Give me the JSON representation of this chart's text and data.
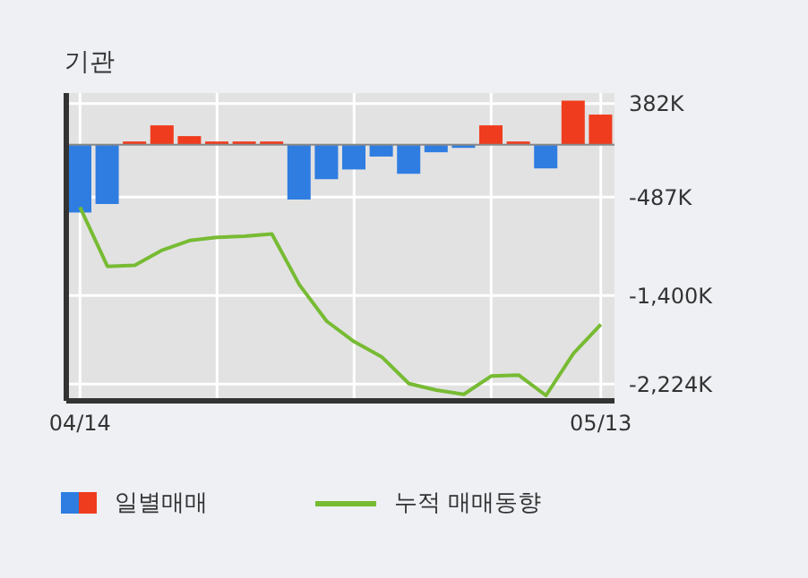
{
  "chart_data": {
    "type": "bar",
    "title": "기관",
    "categories": [
      "04/14",
      null,
      null,
      null,
      null,
      null,
      null,
      null,
      null,
      null,
      null,
      null,
      null,
      null,
      null,
      null,
      null,
      null,
      null,
      "05/13"
    ],
    "series": [
      {
        "name": "일별매매",
        "colors": [
          "#2f7de1",
          "#2f7de1",
          "#f03c1e",
          "#f03c1e",
          "#f03c1e",
          "#f03c1e",
          "#f03c1e",
          "#f03c1e",
          "#2f7de1",
          "#2f7de1",
          "#2f7de1",
          "#2f7de1",
          "#2f7de1",
          "#2f7de1",
          "#2f7de1",
          "#f03c1e",
          "#f03c1e",
          "#2f7de1",
          "#f03c1e",
          "#f03c1e"
        ],
        "values": [
          -630,
          -550,
          30,
          180,
          80,
          30,
          30,
          30,
          -510,
          -320,
          -230,
          -110,
          -270,
          -70,
          -30,
          180,
          30,
          -220,
          410,
          280
        ]
      },
      {
        "name": "누적 매매동향",
        "type": "line",
        "color": "#77bb33",
        "values": [
          -580,
          -1130,
          -1120,
          -980,
          -890,
          -860,
          -850,
          -830,
          -1300,
          -1640,
          -1830,
          -1970,
          -2220,
          -2280,
          -2320,
          -2150,
          -2140,
          -2330,
          -1940,
          -1670
        ]
      }
    ],
    "ylim": [
      -2380,
      480
    ],
    "yticks": [
      {
        "value": 382,
        "label": "382K"
      },
      {
        "value": -487,
        "label": "-487K"
      },
      {
        "value": -1400,
        "label": "-1,400K"
      },
      {
        "value": -2224,
        "label": "-2,224K"
      }
    ],
    "grid": true,
    "legend": "bottom"
  }
}
